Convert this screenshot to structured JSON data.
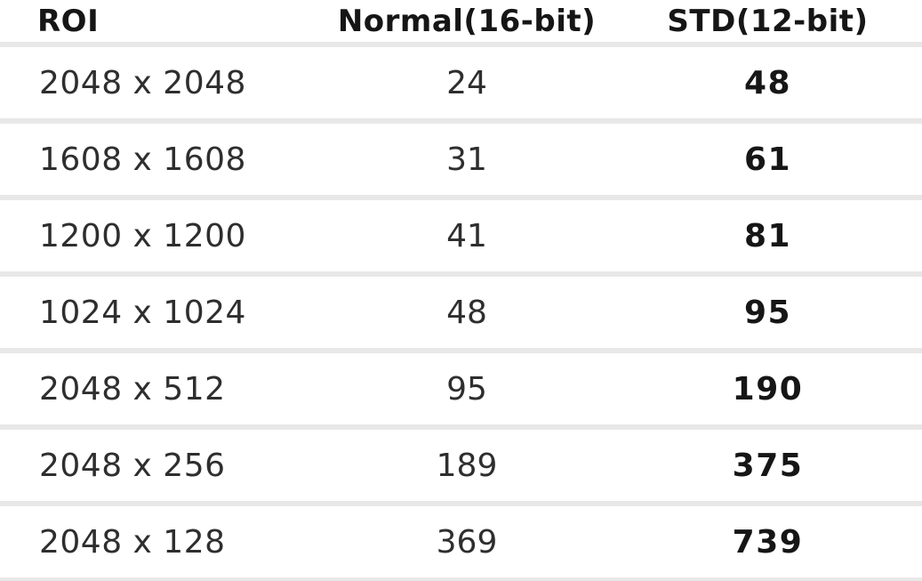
{
  "colors": {
    "background": "#ffffff",
    "separator": "#e8e8e8",
    "text_regular": "#2e2e2e",
    "text_bold": "#161616"
  },
  "table": {
    "headers": {
      "roi": "ROI",
      "normal": "Normal(16-bit)",
      "std": "STD(12-bit)"
    },
    "rows": [
      {
        "roi": "2048 x 2048",
        "normal": "24",
        "std": "48"
      },
      {
        "roi": "1608 x 1608",
        "normal": "31",
        "std": "61"
      },
      {
        "roi": "1200 x 1200",
        "normal": "41",
        "std": "81"
      },
      {
        "roi": "1024 x 1024",
        "normal": "48",
        "std": "95"
      },
      {
        "roi": "2048 x 512",
        "normal": "95",
        "std": "190"
      },
      {
        "roi": "2048 x 256",
        "normal": "189",
        "std": "375"
      },
      {
        "roi": "2048 x 128",
        "normal": "369",
        "std": "739"
      }
    ]
  },
  "chart_data": {
    "type": "table",
    "columns": [
      "ROI",
      "Normal(16-bit)",
      "STD(12-bit)"
    ],
    "rows": [
      [
        "2048 x 2048",
        24,
        48
      ],
      [
        "1608 x 1608",
        31,
        61
      ],
      [
        "1200 x 1200",
        41,
        81
      ],
      [
        "1024 x 1024",
        48,
        95
      ],
      [
        "2048 x 512",
        95,
        190
      ],
      [
        "2048 x 256",
        189,
        375
      ],
      [
        "2048 x 128",
        369,
        739
      ]
    ],
    "notes": "Frame-rate style values per ROI; STD(12-bit) column rendered bold; rows separated by thick light-gray rules; no outer border; first column left-aligned, numeric columns centered"
  }
}
